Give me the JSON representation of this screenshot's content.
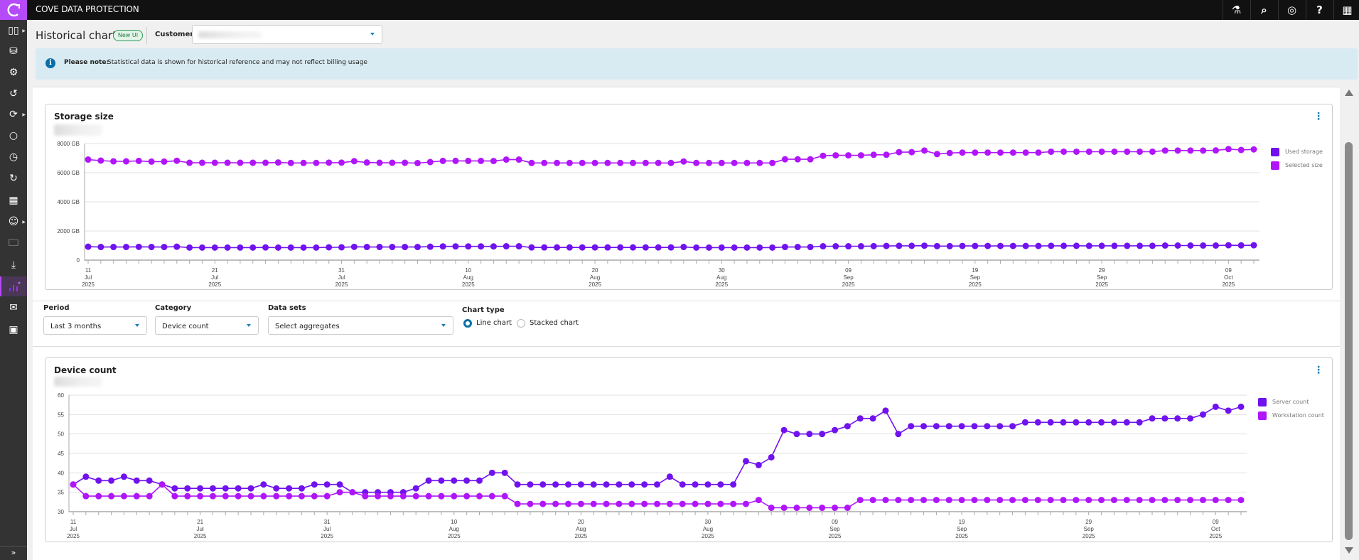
{
  "app": {
    "brand": "COVE DATA PROTECTION"
  },
  "topbar_icons": [
    "flask-icon",
    "search-icon",
    "user-icon",
    "help-icon",
    "apps-grid-icon"
  ],
  "sidebar": {
    "items": [
      "dashboard-icon",
      "storage-settings-icon",
      "device-settings-icon",
      "recovery-icon",
      "sync-icon",
      "refresh-icon",
      "history-icon",
      "restore-icon",
      "reports-icon",
      "users-icon",
      "lock-folder-icon",
      "download-icon",
      "historical-charts-icon",
      "email-schedule-icon",
      "schedule-report-icon"
    ],
    "expand_label": "»"
  },
  "header": {
    "title": "Historical charts",
    "badge": "New UI",
    "customer_label": "Customer"
  },
  "banner": {
    "bold": "Please note:",
    "text": "Statistical data is shown for historical reference and may not reflect billing usage"
  },
  "controls": {
    "period_label": "Period",
    "period_value": "Last 3 months",
    "category_label": "Category",
    "category_value": "Device count",
    "datasets_label": "Data sets",
    "datasets_value": "Select aggregates",
    "charttype_label": "Chart type",
    "line_label": "Line chart",
    "stacked_label": "Stacked chart",
    "selected_chart_type": "line"
  },
  "colors": {
    "series1": "#7012ee",
    "series2": "#b015fa",
    "accent": "#1a7fb8",
    "logo": "#b44af8"
  },
  "chart_data": [
    {
      "type": "line",
      "title": "Storage size",
      "start_date": "2025-07-11",
      "ylim": [
        0,
        8000
      ],
      "y_ticks": [
        0,
        2000,
        4000,
        6000,
        8000
      ],
      "y_tick_labels": [
        "0",
        "2000 GB",
        "4000 GB",
        "6000 GB",
        "8000 GB"
      ],
      "x_ticks": [
        {
          "d": "11",
          "m": "Jul",
          "y": "2025"
        },
        {
          "d": "21",
          "m": "Jul",
          "y": "2025"
        },
        {
          "d": "31",
          "m": "Jul",
          "y": "2025"
        },
        {
          "d": "10",
          "m": "Aug",
          "y": "2025"
        },
        {
          "d": "20",
          "m": "Aug",
          "y": "2025"
        },
        {
          "d": "30",
          "m": "Aug",
          "y": "2025"
        },
        {
          "d": "09",
          "m": "Sep",
          "y": "2025"
        },
        {
          "d": "19",
          "m": "Sep",
          "y": "2025"
        },
        {
          "d": "29",
          "m": "Sep",
          "y": "2025"
        },
        {
          "d": "09",
          "m": "Oct",
          "y": "2025"
        }
      ],
      "legend": "right",
      "series": [
        {
          "name": "Used storage",
          "color": "#7012ee",
          "values": [
            920,
            900,
            900,
            900,
            910,
            900,
            900,
            920,
            860,
            860,
            860,
            860,
            860,
            860,
            870,
            860,
            860,
            860,
            860,
            880,
            880,
            910,
            900,
            900,
            900,
            900,
            900,
            920,
            940,
            940,
            940,
            940,
            940,
            950,
            950,
            870,
            870,
            870,
            870,
            870,
            870,
            870,
            870,
            870,
            870,
            870,
            870,
            900,
            860,
            860,
            860,
            860,
            860,
            860,
            860,
            900,
            900,
            900,
            950,
            950,
            950,
            950,
            960,
            970,
            980,
            980,
            990,
            960,
            960,
            970,
            970,
            970,
            970,
            970,
            970,
            970,
            980,
            980,
            980,
            980,
            980,
            980,
            980,
            980,
            980,
            1000,
            1000,
            1000,
            1000,
            1000,
            1020,
            1010,
            1020
          ]
        },
        {
          "name": "Selected size",
          "color": "#b015fa",
          "values": [
            6900,
            6830,
            6780,
            6780,
            6810,
            6760,
            6760,
            6820,
            6680,
            6680,
            6680,
            6680,
            6680,
            6680,
            6680,
            6700,
            6670,
            6670,
            6670,
            6690,
            6690,
            6790,
            6700,
            6680,
            6680,
            6680,
            6660,
            6730,
            6810,
            6810,
            6810,
            6810,
            6800,
            6900,
            6900,
            6670,
            6670,
            6670,
            6670,
            6670,
            6670,
            6670,
            6670,
            6670,
            6670,
            6670,
            6670,
            6770,
            6670,
            6670,
            6670,
            6670,
            6670,
            6670,
            6670,
            6920,
            6920,
            6920,
            7160,
            7190,
            7190,
            7190,
            7230,
            7230,
            7410,
            7410,
            7520,
            7280,
            7350,
            7380,
            7380,
            7380,
            7380,
            7380,
            7380,
            7380,
            7440,
            7440,
            7440,
            7440,
            7440,
            7440,
            7440,
            7440,
            7440,
            7520,
            7520,
            7520,
            7520,
            7530,
            7620,
            7560,
            7600
          ]
        }
      ]
    },
    {
      "type": "line",
      "title": "Device count",
      "start_date": "2025-07-11",
      "ylim": [
        30,
        60
      ],
      "y_ticks": [
        30,
        35,
        40,
        45,
        50,
        55,
        60
      ],
      "y_tick_labels": [
        "30",
        "35",
        "40",
        "45",
        "50",
        "55",
        "60"
      ],
      "x_ticks": [
        {
          "d": "11",
          "m": "Jul",
          "y": "2025"
        },
        {
          "d": "21",
          "m": "Jul",
          "y": "2025"
        },
        {
          "d": "31",
          "m": "Jul",
          "y": "2025"
        },
        {
          "d": "10",
          "m": "Aug",
          "y": "2025"
        },
        {
          "d": "20",
          "m": "Aug",
          "y": "2025"
        },
        {
          "d": "30",
          "m": "Aug",
          "y": "2025"
        },
        {
          "d": "09",
          "m": "Sep",
          "y": "2025"
        },
        {
          "d": "19",
          "m": "Sep",
          "y": "2025"
        },
        {
          "d": "29",
          "m": "Sep",
          "y": "2025"
        },
        {
          "d": "09",
          "m": "Oct",
          "y": "2025"
        }
      ],
      "legend": "right",
      "series": [
        {
          "name": "Server count",
          "color": "#7012ee",
          "values": [
            37,
            39,
            38,
            38,
            39,
            38,
            38,
            37,
            36,
            36,
            36,
            36,
            36,
            36,
            36,
            37,
            36,
            36,
            36,
            37,
            37,
            37,
            35,
            35,
            35,
            35,
            35,
            36,
            38,
            38,
            38,
            38,
            38,
            40,
            40,
            37,
            37,
            37,
            37,
            37,
            37,
            37,
            37,
            37,
            37,
            37,
            37,
            39,
            37,
            37,
            37,
            37,
            37,
            43,
            42,
            44,
            51,
            50,
            50,
            50,
            51,
            52,
            54,
            54,
            56,
            50,
            52,
            52,
            52,
            52,
            52,
            52,
            52,
            52,
            52,
            53,
            53,
            53,
            53,
            53,
            53,
            53,
            53,
            53,
            53,
            54,
            54,
            54,
            54,
            55,
            57,
            56,
            57
          ]
        },
        {
          "name": "Workstation count",
          "color": "#b015fa",
          "values": [
            37,
            34,
            34,
            34,
            34,
            34,
            34,
            37,
            34,
            34,
            34,
            34,
            34,
            34,
            34,
            34,
            34,
            34,
            34,
            34,
            34,
            35,
            35,
            34,
            34,
            34,
            34,
            34,
            34,
            34,
            34,
            34,
            34,
            34,
            34,
            32,
            32,
            32,
            32,
            32,
            32,
            32,
            32,
            32,
            32,
            32,
            32,
            32,
            32,
            32,
            32,
            32,
            32,
            32,
            33,
            31,
            31,
            31,
            31,
            31,
            31,
            31,
            33,
            33,
            33,
            33,
            33,
            33,
            33,
            33,
            33,
            33,
            33,
            33,
            33,
            33,
            33,
            33,
            33,
            33,
            33,
            33,
            33,
            33,
            33,
            33,
            33,
            33,
            33,
            33,
            33,
            33,
            33
          ]
        }
      ]
    }
  ]
}
